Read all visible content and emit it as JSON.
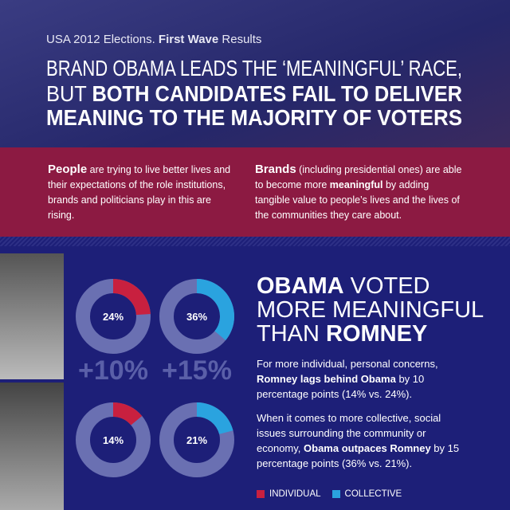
{
  "header": {
    "intro_segments": [
      "USA 2012 Elections. ",
      "First Wave",
      " Results"
    ],
    "title_lines": [
      [
        "BRAND OBAMA LEADS THE ‘MEANINGFUL’ RACE,"
      ],
      [
        "BUT ",
        "BOTH CANDIDATES FAIL TO DELIVER"
      ],
      [
        "MEANING TO THE MAJORITY OF VOTERS"
      ]
    ]
  },
  "intro": {
    "left": [
      "People",
      " are trying to live better lives and their expectations of the role institutions, brands and politicians play in this are rising."
    ],
    "right": [
      "Brands",
      " (including presidential ones) are able to become more ",
      "meaningful",
      " by adding tangible value to people’s lives and the lives of the communities they care about."
    ]
  },
  "chart_data": [
    {
      "type": "donut",
      "values": [
        24
      ],
      "value_labels": [
        "24%"
      ],
      "color": "#c8203f"
    },
    {
      "type": "donut",
      "values": [
        36
      ],
      "value_labels": [
        "36%"
      ],
      "color": "#2aa3df"
    },
    {
      "type": "donut",
      "values": [
        14
      ],
      "value_labels": [
        "14%"
      ],
      "color": "#c8203f"
    },
    {
      "type": "donut",
      "values": [
        21
      ],
      "value_labels": [
        "21%"
      ],
      "color": "#2aa3df"
    }
  ],
  "differences": [
    "+10%",
    "+15%"
  ],
  "headline": [
    [
      "OBAMA",
      " VOTED"
    ],
    [
      "MORE MEANINGFUL"
    ],
    [
      "THAN ",
      "ROMNEY"
    ]
  ],
  "paragraphs": [
    [
      "For more individual, personal concerns, ",
      "Romney lags behind Obama",
      " by 10 percentage points (14% vs. 24%)."
    ],
    [
      "When it comes to more collective, social issues surrounding the community or economy, ",
      "Obama outpaces Romney",
      " by 15 percentage points (36% vs. 21%)."
    ]
  ],
  "legend": [
    {
      "label": "INDIVIDUAL",
      "color": "#c8203f"
    },
    {
      "label": "COLLECTIVE",
      "color": "#2aa3df"
    }
  ]
}
